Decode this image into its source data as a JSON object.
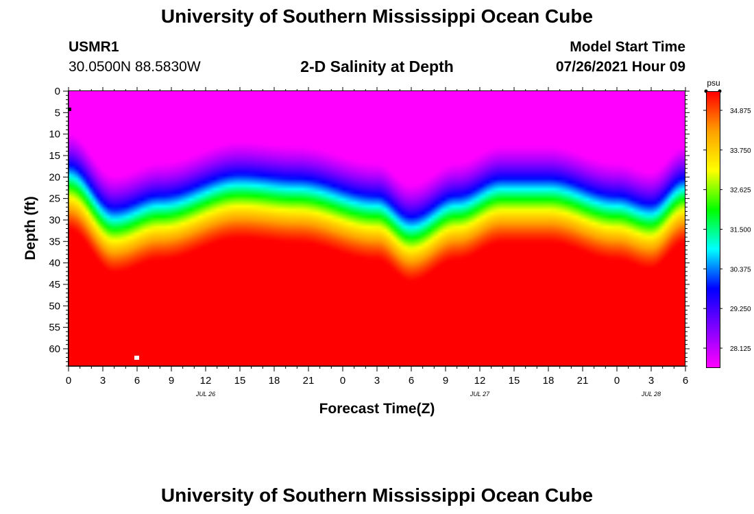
{
  "header": {
    "title": "University of Southern Mississippi Ocean Cube",
    "station_id": "USMR1",
    "station_coords": "30.0500N  88.5830W",
    "subtitle": "2-D Salinity at Depth",
    "model_start_label": "Model Start Time",
    "model_start_value": "07/26/2021 Hour 09"
  },
  "footer": {
    "title": "University of Southern Mississippi Ocean Cube"
  },
  "chart_data": {
    "type": "heatmap",
    "title": "2-D Salinity at Depth",
    "xlabel": "Forecast Time(Z)",
    "ylabel": "Depth (ft)",
    "x_range_hours": [
      0,
      54
    ],
    "y_range_ft": [
      0,
      64
    ],
    "x_ticks": [
      "0",
      "3",
      "6",
      "9",
      "12",
      "15",
      "18",
      "21",
      "0",
      "3",
      "6",
      "9",
      "12",
      "15",
      "18",
      "21",
      "0",
      "3",
      "6"
    ],
    "date_labels": [
      {
        "text": "JUL 26",
        "hour": 12
      },
      {
        "text": "JUL 27",
        "hour": 36
      },
      {
        "text": "JUL 28",
        "hour": 51
      }
    ],
    "y_ticks": [
      0,
      5,
      10,
      15,
      20,
      25,
      30,
      35,
      40,
      45,
      50,
      55,
      60
    ],
    "colorbar": {
      "units": "psu",
      "ticks": [
        "34.875",
        "33.750",
        "32.625",
        "31.500",
        "30.375",
        "29.250",
        "28.125"
      ],
      "tick_values": [
        34.875,
        33.75,
        32.625,
        31.5,
        30.375,
        29.25,
        28.125
      ],
      "range": [
        27.6,
        35.4
      ],
      "colors": [
        "#ff00ff",
        "#8000ff",
        "#0000ff",
        "#00ffff",
        "#00ff00",
        "#ffff00",
        "#ffa000",
        "#ff0000"
      ]
    },
    "halocline_depth_ft": {
      "hours": [
        0,
        4,
        8,
        15,
        20,
        27,
        30,
        34,
        38,
        42,
        48,
        51,
        54
      ],
      "depth": [
        21,
        31,
        28,
        23,
        24,
        28,
        33,
        28,
        24,
        24,
        28,
        30,
        24
      ]
    },
    "markers": [
      {
        "hour": 0,
        "depth_ft": 4,
        "color": "#000000"
      },
      {
        "hour": 6,
        "depth_ft": 62,
        "color": "#ffffff"
      }
    ]
  }
}
